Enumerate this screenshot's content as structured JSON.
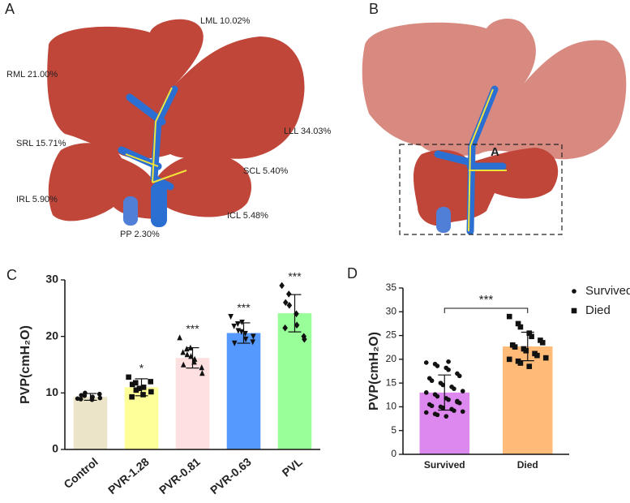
{
  "panel_labels": [
    "A",
    "B",
    "C",
    "D"
  ],
  "liver_labels": [
    "LML  10.02%",
    "RML  21.00%",
    "LLL  34.03%",
    "SRL  15.71%",
    "SCL 5.40%",
    "IRL  5.90%",
    "ICL 5.48%",
    "PP 2.30%"
  ],
  "resection_label": "A",
  "chart_data": [
    {
      "type": "bar",
      "y_label": "PVP(cmH₂O)",
      "categories": [
        "Control",
        "PVR-1.28",
        "PVR-0.81",
        "PVR-0.63",
        "PVL"
      ],
      "values": [
        9.3,
        11.0,
        16.2,
        20.6,
        24.1
      ],
      "errors": [
        0.6,
        1.5,
        1.8,
        1.8,
        3.3
      ],
      "colors": [
        "#ebe4c8",
        "#ffff99",
        "#ffe0e0",
        "#5599ff",
        "#99ff99"
      ],
      "markers": [
        "circle",
        "square",
        "triangle",
        "triangle-down",
        "diamond"
      ],
      "sig_labels": [
        null,
        "*",
        "***",
        "***",
        "***"
      ],
      "points": [
        [
          9.0,
          9.5,
          10.0,
          8.8,
          9.3,
          9.8,
          9.1,
          8.9,
          9.6
        ],
        [
          12.8,
          11.8,
          10.5,
          9.7,
          11.0,
          12.0,
          10.2,
          9.3,
          11.5,
          10.8
        ],
        [
          19.8,
          17.8,
          16.8,
          15.5,
          16.0,
          14.5,
          13.5,
          17.2,
          15.0,
          18.0,
          16.5
        ],
        [
          23.5,
          22.2,
          21.0,
          20.5,
          19.5,
          19.0,
          20.0,
          21.8,
          18.8,
          20.8,
          22.5
        ],
        [
          29.0,
          27.5,
          25.5,
          24.0,
          22.0,
          20.0,
          19.5,
          21.5,
          26.0
        ]
      ],
      "ylim": [
        0,
        30
      ],
      "yticks": [
        0,
        10,
        20,
        30
      ]
    },
    {
      "type": "bar",
      "y_label": "PVP(cmH₂O)",
      "categories": [
        "Survived",
        "Died"
      ],
      "values": [
        13.0,
        22.7
      ],
      "errors": [
        3.7,
        3.0
      ],
      "colors": [
        "#dd88ee",
        "#ffbb77"
      ],
      "markers": [
        "circle",
        "square"
      ],
      "significance": "***",
      "legend": "top-right",
      "points": [
        [
          19.3,
          19.0,
          18.6,
          18.2,
          17.8,
          17.0,
          16.5,
          16.0,
          15.5,
          15.0,
          14.6,
          14.2,
          13.8,
          13.3,
          13.0,
          12.6,
          12.2,
          11.8,
          11.5,
          11.2,
          10.8,
          10.5,
          10.2,
          10.0,
          9.8,
          9.5,
          9.2,
          9.0,
          8.8,
          8.5,
          8.3,
          8.0,
          19.5,
          11.0
        ],
        [
          29.0,
          27.5,
          26.8,
          25.5,
          24.8,
          24.0,
          23.5,
          23.0,
          22.6,
          22.2,
          21.8,
          21.2,
          20.8,
          20.3,
          20.0,
          19.6,
          19.2,
          18.5
        ]
      ],
      "ylim": [
        0,
        35
      ],
      "yticks": [
        0,
        5,
        10,
        15,
        20,
        25,
        30,
        35
      ]
    }
  ]
}
